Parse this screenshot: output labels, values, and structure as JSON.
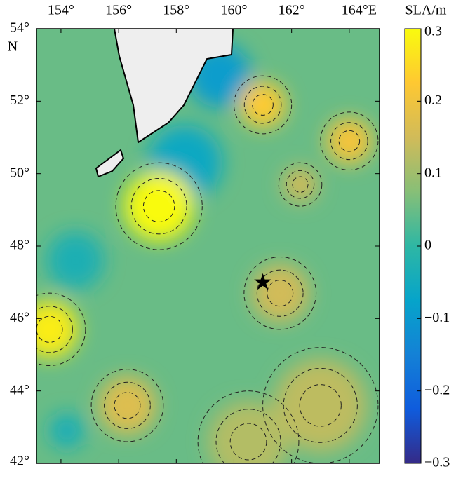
{
  "map": {
    "xlim": [
      153.15,
      165.05
    ],
    "ylim": [
      42,
      54
    ],
    "xticks": [
      {
        "value": 154,
        "label": "154°"
      },
      {
        "value": 156,
        "label": "156°"
      },
      {
        "value": 158,
        "label": "158°"
      },
      {
        "value": 160,
        "label": "160°"
      },
      {
        "value": 162,
        "label": "162°"
      },
      {
        "value": 164,
        "label": "164°E"
      }
    ],
    "yticks": [
      {
        "value": 54,
        "label": "54°"
      },
      {
        "value": 52,
        "label": "52°"
      },
      {
        "value": 50,
        "label": "50°"
      },
      {
        "value": 48,
        "label": "48°"
      },
      {
        "value": 46,
        "label": "46°"
      },
      {
        "value": 44,
        "label": "44°"
      },
      {
        "value": 42,
        "label": "42°"
      }
    ],
    "lat_suffix": "N",
    "background_sla": 0.05,
    "eddies": [
      {
        "lon": 159.5,
        "lat": 52.7,
        "sla": -0.09,
        "radius_deg": 1.1
      },
      {
        "lon": 158.3,
        "lat": 50.3,
        "sla": -0.06,
        "radius_deg": 1.3
      },
      {
        "lon": 154.5,
        "lat": 47.6,
        "sla": -0.03,
        "radius_deg": 1.0
      },
      {
        "lon": 154.2,
        "lat": 42.9,
        "sla": -0.04,
        "radius_deg": 0.6
      },
      {
        "lon": 163.0,
        "lat": 43.6,
        "sla": 0.13,
        "radius_deg": 1.6
      },
      {
        "lon": 160.5,
        "lat": 42.6,
        "sla": 0.12,
        "radius_deg": 1.4
      },
      {
        "lon": 156.3,
        "lat": 43.6,
        "sla": 0.17,
        "radius_deg": 1.0
      },
      {
        "lon": 161.6,
        "lat": 46.7,
        "sla": 0.15,
        "radius_deg": 1.0
      },
      {
        "lon": 162.3,
        "lat": 49.7,
        "sla": 0.15,
        "radius_deg": 0.6
      },
      {
        "lon": 164.0,
        "lat": 50.9,
        "sla": 0.21,
        "radius_deg": 0.8
      },
      {
        "lon": 161.0,
        "lat": 51.9,
        "sla": 0.23,
        "radius_deg": 0.8
      },
      {
        "lon": 153.6,
        "lat": 45.7,
        "sla": 0.28,
        "radius_deg": 1.0
      },
      {
        "lon": 157.4,
        "lat": 49.1,
        "sla": 0.3,
        "radius_deg": 1.2
      }
    ],
    "marker": {
      "lon": 161.0,
      "lat": 47.0
    }
  },
  "colorbar": {
    "title": "SLA/m",
    "lim": [
      -0.3,
      0.3
    ],
    "ticks": [
      0.3,
      0.2,
      0.1,
      0,
      {
        "value": -0.1,
        "label": "−0.1"
      },
      {
        "value": -0.2,
        "label": "−0.2"
      },
      {
        "value": -0.3,
        "label": "−0.3"
      }
    ],
    "colormap": [
      "#352a87",
      "#0f5cdd",
      "#1481d6",
      "#06a4ca",
      "#2eb7a4",
      "#87bf77",
      "#d1bb59",
      "#fec832",
      "#f9fb0e"
    ]
  }
}
